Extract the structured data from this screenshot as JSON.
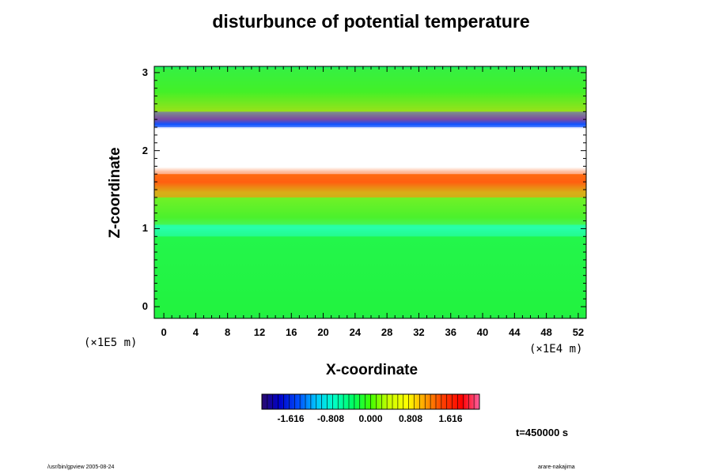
{
  "chart_data": {
    "type": "heatmap",
    "title": "disturbunce of potential temperature",
    "xlabel": "X-coordinate",
    "ylabel": "Z-coordinate",
    "x_unit": "(×1E4 m)",
    "y_unit": "(×1E5 m)",
    "xlim": [
      -1.2,
      53
    ],
    "ylim": [
      -0.15,
      3.08
    ],
    "x_ticks": [
      0,
      4,
      8,
      12,
      16,
      20,
      24,
      28,
      32,
      36,
      40,
      44,
      48,
      52
    ],
    "y_ticks": [
      0,
      1,
      2,
      3
    ],
    "grid": false,
    "colorbar": {
      "orientation": "horizontal",
      "placement": "bottom",
      "range": [
        -2.2,
        2.2
      ],
      "tick_labels": [
        "-1.616",
        "-0.808",
        "0.000",
        "0.808",
        "1.616"
      ],
      "colors": [
        "#2a0a6e",
        "#0000c8",
        "#0050ff",
        "#00c8ff",
        "#00ffc8",
        "#00ff60",
        "#40ff00",
        "#c8ff00",
        "#ffff00",
        "#ffa000",
        "#ff4000",
        "#ff0000",
        "#ff60a0"
      ]
    },
    "regions": [
      {
        "z_range": [
          -0.1,
          0.9
        ],
        "approx_value": 0.0,
        "description_color": "#22f53a"
      },
      {
        "z_range": [
          0.9,
          1.05
        ],
        "approx_value": -0.6,
        "description_color": "#20ffa8"
      },
      {
        "z_range": [
          1.05,
          1.4
        ],
        "approx_value": 0.3,
        "description_color": "#55f22a"
      },
      {
        "z_range": [
          1.4,
          1.7
        ],
        "approx_value": 1.2,
        "description_color": "#ff7a10"
      },
      {
        "z_range": [
          1.7,
          2.3
        ],
        "approx_value": "out of range",
        "description_color": "#ffffff"
      },
      {
        "z_range": [
          2.3,
          2.5
        ],
        "approx_value": -1.2,
        "description_color": "#1060ff"
      },
      {
        "z_range": [
          2.5,
          3.05
        ],
        "approx_value": 0.2,
        "description_color": "#45f030"
      }
    ],
    "annotation_time": "t=450000 s"
  },
  "footer": {
    "left": "/usr/bin/gpview 2005-08-24",
    "right": "arare-nakajima"
  }
}
